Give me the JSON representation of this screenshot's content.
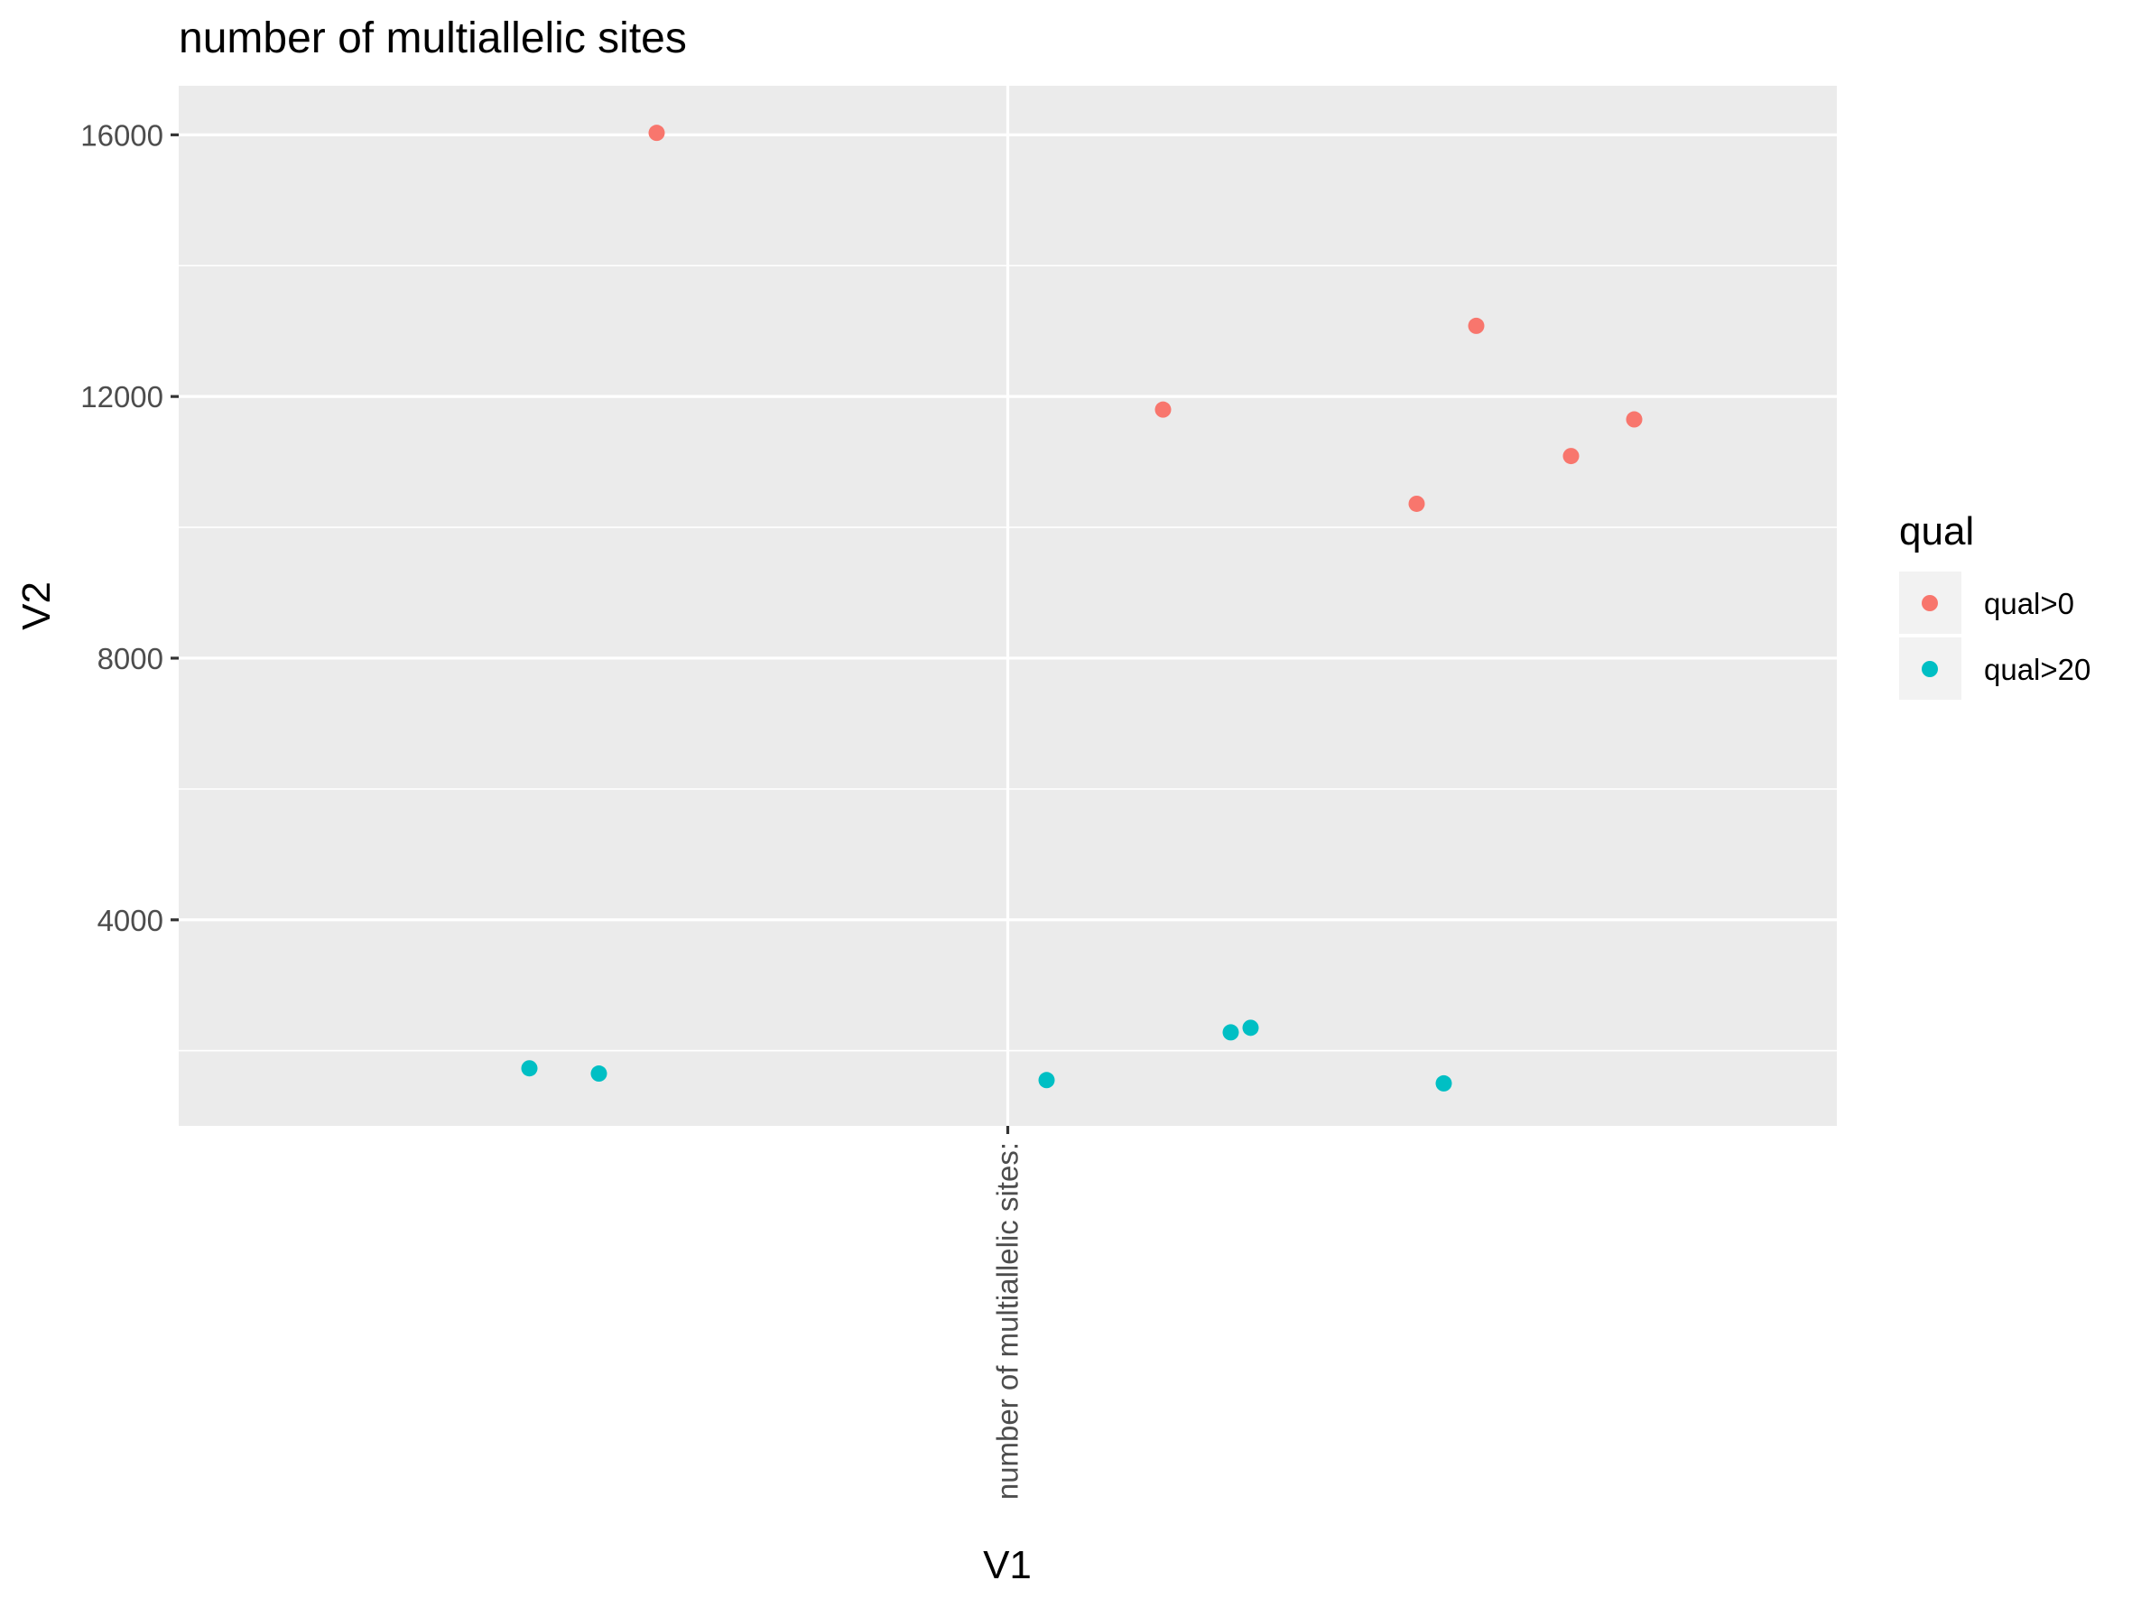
{
  "chart_data": {
    "type": "scatter",
    "title": "number of multiallelic sites",
    "xlabel": "V1",
    "ylabel": "V2",
    "x_categories": [
      "number of multiallelic sites:"
    ],
    "x_tick_labels": [
      "number of multiallelic sites:"
    ],
    "ylim": [
      850,
      16750
    ],
    "y_ticks": [
      4000,
      8000,
      12000,
      16000
    ],
    "y_tick_labels": [
      "4000",
      "8000",
      "12000",
      "16000"
    ],
    "grid": true,
    "legend": {
      "title": "qual",
      "position": "right"
    },
    "series": [
      {
        "name": "qual>0",
        "color": "#F8766D",
        "points": [
          {
            "x": "number of multiallelic sites:",
            "y": 16030
          },
          {
            "x": "number of multiallelic sites:",
            "y": 11800
          },
          {
            "x": "number of multiallelic sites:",
            "y": 10360
          },
          {
            "x": "number of multiallelic sites:",
            "y": 13080
          },
          {
            "x": "number of multiallelic sites:",
            "y": 11090
          },
          {
            "x": "number of multiallelic sites:",
            "y": 11650
          }
        ]
      },
      {
        "name": "qual>20",
        "color": "#00BFC4",
        "points": [
          {
            "x": "number of multiallelic sites:",
            "y": 1730
          },
          {
            "x": "number of multiallelic sites:",
            "y": 1650
          },
          {
            "x": "number of multiallelic sites:",
            "y": 1550
          },
          {
            "x": "number of multiallelic sites:",
            "y": 2280
          },
          {
            "x": "number of multiallelic sites:",
            "y": 2350
          },
          {
            "x": "number of multiallelic sites:",
            "y": 1500
          }
        ]
      }
    ]
  }
}
